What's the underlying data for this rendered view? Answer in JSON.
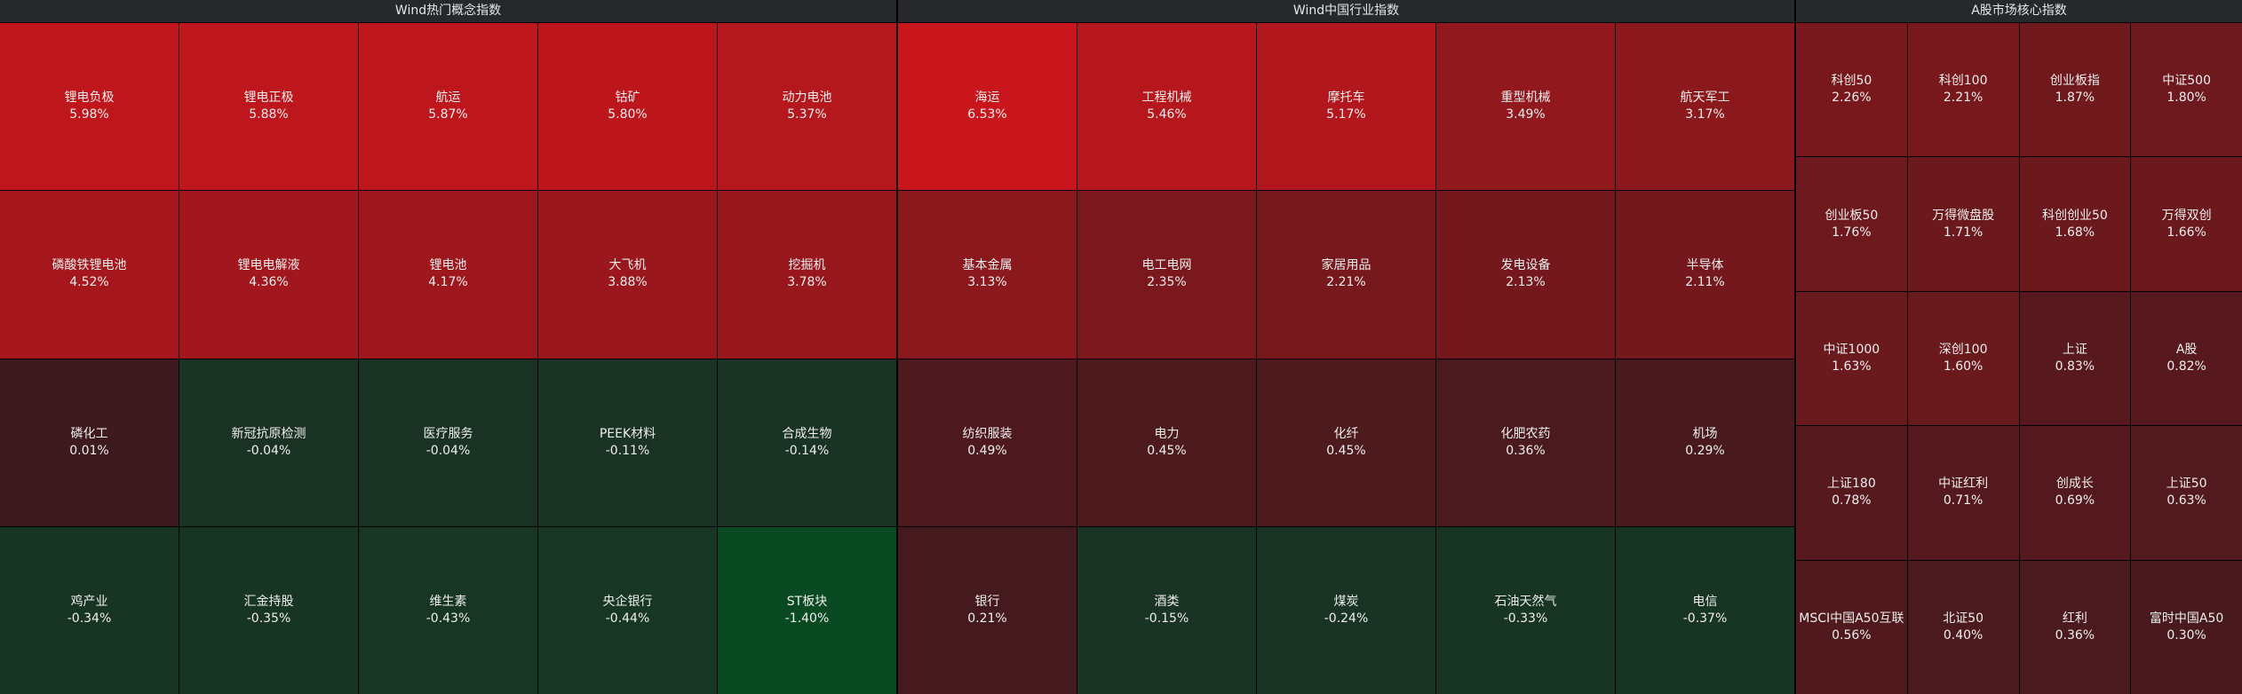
{
  "panels": [
    {
      "title": "Wind热门概念指数",
      "cells": [
        {
          "name": "锂电负极",
          "change": "5.98%"
        },
        {
          "name": "锂电正极",
          "change": "5.88%"
        },
        {
          "name": "航运",
          "change": "5.87%"
        },
        {
          "name": "钴矿",
          "change": "5.80%"
        },
        {
          "name": "动力电池",
          "change": "5.37%"
        },
        {
          "name": "磷酸铁锂电池",
          "change": "4.52%"
        },
        {
          "name": "锂电电解液",
          "change": "4.36%"
        },
        {
          "name": "锂电池",
          "change": "4.17%"
        },
        {
          "name": "大飞机",
          "change": "3.88%"
        },
        {
          "name": "挖掘机",
          "change": "3.78%"
        },
        {
          "name": "磷化工",
          "change": "0.01%"
        },
        {
          "name": "新冠抗原检测",
          "change": "-0.04%"
        },
        {
          "name": "医疗服务",
          "change": "-0.04%"
        },
        {
          "name": "PEEK材料",
          "change": "-0.11%"
        },
        {
          "name": "合成生物",
          "change": "-0.14%"
        },
        {
          "name": "鸡产业",
          "change": "-0.34%"
        },
        {
          "name": "汇金持股",
          "change": "-0.35%"
        },
        {
          "name": "维生素",
          "change": "-0.43%"
        },
        {
          "name": "央企银行",
          "change": "-0.44%"
        },
        {
          "name": "ST板块",
          "change": "-1.40%"
        }
      ]
    },
    {
      "title": "Wind中国行业指数",
      "cells": [
        {
          "name": "海运",
          "change": "6.53%"
        },
        {
          "name": "工程机械",
          "change": "5.46%"
        },
        {
          "name": "摩托车",
          "change": "5.17%"
        },
        {
          "name": "重型机械",
          "change": "3.49%"
        },
        {
          "name": "航天军工",
          "change": "3.17%"
        },
        {
          "name": "基本金属",
          "change": "3.13%"
        },
        {
          "name": "电工电网",
          "change": "2.35%"
        },
        {
          "name": "家居用品",
          "change": "2.21%"
        },
        {
          "name": "发电设备",
          "change": "2.13%"
        },
        {
          "name": "半导体",
          "change": "2.11%"
        },
        {
          "name": "纺织服装",
          "change": "0.49%"
        },
        {
          "name": "电力",
          "change": "0.45%"
        },
        {
          "name": "化纤",
          "change": "0.45%"
        },
        {
          "name": "化肥农药",
          "change": "0.36%"
        },
        {
          "name": "机场",
          "change": "0.29%"
        },
        {
          "name": "银行",
          "change": "0.21%"
        },
        {
          "name": "酒类",
          "change": "-0.15%"
        },
        {
          "name": "煤炭",
          "change": "-0.24%"
        },
        {
          "name": "石油天然气",
          "change": "-0.33%"
        },
        {
          "name": "电信",
          "change": "-0.37%"
        }
      ]
    },
    {
      "title": "A股市场核心指数",
      "cells": [
        {
          "name": "科创50",
          "change": "2.26%"
        },
        {
          "name": "科创100",
          "change": "2.21%"
        },
        {
          "name": "创业板指",
          "change": "1.87%"
        },
        {
          "name": "中证500",
          "change": "1.80%"
        },
        {
          "name": "创业板50",
          "change": "1.76%"
        },
        {
          "name": "万得微盘股",
          "change": "1.71%"
        },
        {
          "name": "科创创业50",
          "change": "1.68%"
        },
        {
          "name": "万得双创",
          "change": "1.66%"
        },
        {
          "name": "中证1000",
          "change": "1.63%"
        },
        {
          "name": "深创100",
          "change": "1.60%"
        },
        {
          "name": "上证",
          "change": "0.83%"
        },
        {
          "name": "A股",
          "change": "0.82%"
        },
        {
          "name": "上证180",
          "change": "0.78%"
        },
        {
          "name": "中证红利",
          "change": "0.71%"
        },
        {
          "name": "创成长",
          "change": "0.69%"
        },
        {
          "name": "上证50",
          "change": "0.63%"
        },
        {
          "name": "MSCI中国A50互联",
          "change": "0.56%"
        },
        {
          "name": "北证50",
          "change": "0.40%"
        },
        {
          "name": "红利",
          "change": "0.36%"
        },
        {
          "name": "富时中国A50",
          "change": "0.30%"
        }
      ]
    }
  ]
}
